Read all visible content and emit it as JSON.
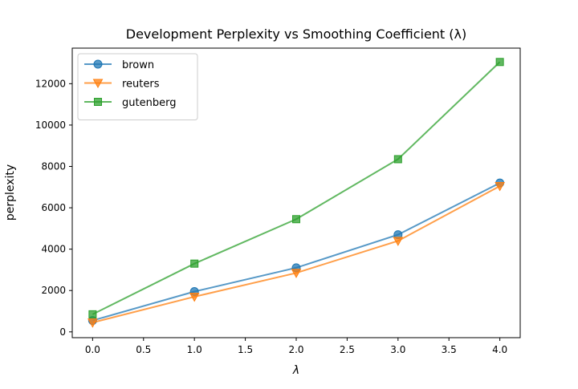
{
  "chart_data": {
    "type": "line",
    "title": "Development Perplexity vs Smoothing Coefficient (λ)",
    "xlabel": "λ",
    "ylabel": "perplexity",
    "x": [
      0.0,
      1.0,
      2.0,
      3.0,
      4.0
    ],
    "xlim": [
      -0.2,
      4.2
    ],
    "ylim": [
      -280,
      13720
    ],
    "x_ticks": [
      0.0,
      0.5,
      1.0,
      1.5,
      2.0,
      2.5,
      3.0,
      3.5,
      4.0
    ],
    "x_tick_labels": [
      "0.0",
      "0.5",
      "1.0",
      "1.5",
      "2.0",
      "2.5",
      "3.0",
      "3.5",
      "4.0"
    ],
    "y_ticks": [
      0,
      2000,
      4000,
      6000,
      8000,
      10000,
      12000
    ],
    "y_tick_labels": [
      "0",
      "2000",
      "4000",
      "6000",
      "8000",
      "10000",
      "12000"
    ],
    "grid": false,
    "legend_position": "top-left",
    "series": [
      {
        "name": "brown",
        "values": [
          550,
          1950,
          3100,
          4700,
          7200
        ],
        "color": "#1f77b4",
        "marker": "circle"
      },
      {
        "name": "reuters",
        "values": [
          450,
          1700,
          2850,
          4400,
          7050
        ],
        "color": "#ff7f0e",
        "marker": "triangle-down"
      },
      {
        "name": "gutenberg",
        "values": [
          850,
          3300,
          5450,
          8350,
          13050
        ],
        "color": "#2ca02c",
        "marker": "square"
      }
    ]
  }
}
